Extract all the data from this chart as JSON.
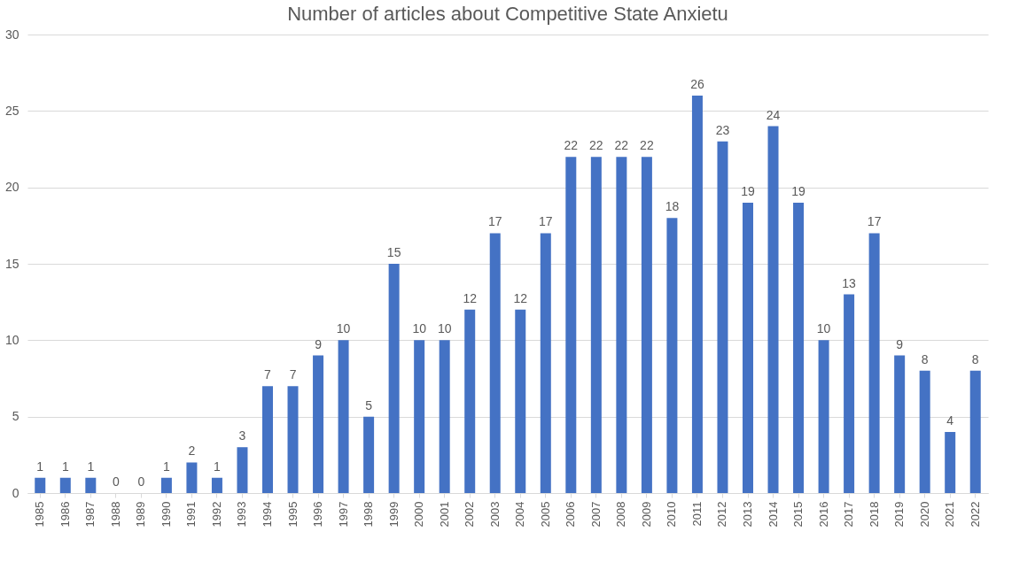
{
  "chart_data": {
    "type": "bar",
    "title": "Number of articles about Competitive State Anxietu",
    "categories": [
      "1985",
      "1986",
      "1987",
      "1988",
      "1989",
      "1990",
      "1991",
      "1992",
      "1993",
      "1994",
      "1995",
      "1996",
      "1997",
      "1998",
      "1999",
      "2000",
      "2001",
      "2002",
      "2003",
      "2004",
      "2005",
      "2006",
      "2007",
      "2008",
      "2009",
      "2010",
      "2011",
      "2012",
      "2013",
      "2014",
      "2015",
      "2016",
      "2017",
      "2018",
      "2019",
      "2020",
      "2021",
      "2022"
    ],
    "values": [
      1,
      1,
      1,
      0,
      0,
      1,
      2,
      1,
      3,
      7,
      7,
      9,
      10,
      5,
      15,
      10,
      10,
      12,
      17,
      12,
      17,
      22,
      22,
      22,
      22,
      18,
      26,
      23,
      19,
      24,
      19,
      10,
      13,
      17,
      9,
      8,
      4,
      8
    ],
    "color": "#4472c4",
    "ylim": [
      0,
      30
    ],
    "yticks": [
      0,
      5,
      10,
      15,
      20,
      25,
      30
    ],
    "grid": "y",
    "data_labels": true
  }
}
